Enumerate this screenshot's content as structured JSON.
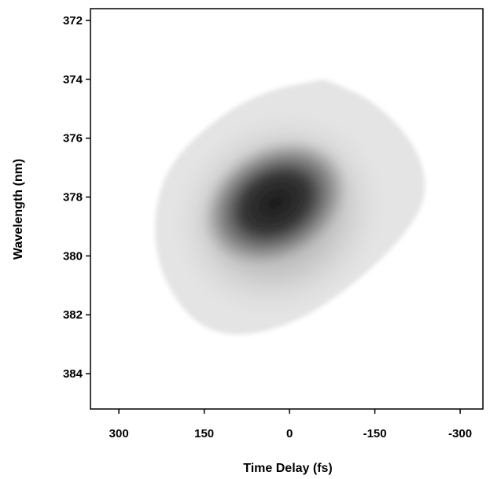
{
  "chart_data": {
    "type": "heatmap",
    "title": "",
    "xlabel": "Time Delay (fs)",
    "ylabel": "Wavelength (nm)",
    "xlim": [
      350,
      -340
    ],
    "ylim": [
      371.6,
      385.2
    ],
    "x_ticks": [
      300,
      150,
      0,
      -150,
      -300
    ],
    "x_tick_labels": [
      "300",
      "150",
      "0",
      "-150",
      "-300"
    ],
    "y_ticks": [
      372,
      374,
      376,
      378,
      380,
      382,
      384
    ],
    "y_tick_labels": [
      "372",
      "374",
      "376",
      "378",
      "380",
      "382",
      "384"
    ],
    "grid": false,
    "colormap": "grayscale (white = low, black = high intensity)",
    "peak": {
      "time_delay_fs": 25,
      "wavelength_nm": 378.2
    },
    "support_region": {
      "time_delay_fs": [
        -245,
        240
      ],
      "wavelength_nm": [
        374.0,
        382.8
      ]
    },
    "colors": {
      "peak": "#1c1c1c",
      "background": "#ffffff",
      "axis": "#000000"
    }
  }
}
